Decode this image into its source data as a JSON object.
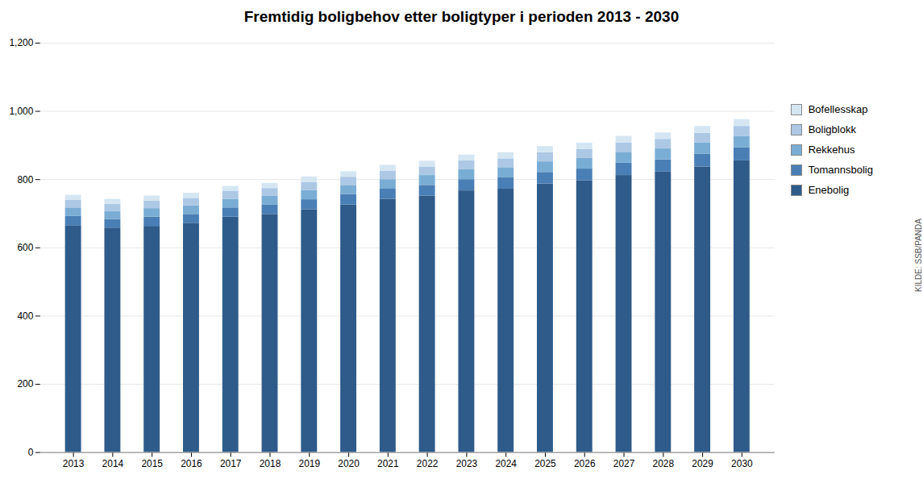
{
  "chart_data": {
    "type": "bar",
    "stacked": true,
    "title": "Fremtidig boligbehov etter boligtyper i perioden 2013 - 2030",
    "annotations": [
      "KILDE: SSB/PANDA"
    ],
    "categories": [
      "2013",
      "2014",
      "2015",
      "2016",
      "2017",
      "2018",
      "2019",
      "2020",
      "2021",
      "2022",
      "2023",
      "2024",
      "2025",
      "2026",
      "2027",
      "2028",
      "2029",
      "2030"
    ],
    "series": [
      {
        "name": "Enebolig",
        "color": "#2E5B8A",
        "values": [
          665,
          658,
          663,
          672,
          690,
          698,
          712,
          726,
          742,
          752,
          767,
          772,
          787,
          797,
          812,
          822,
          837,
          855
        ]
      },
      {
        "name": "Tomannsbolig",
        "color": "#4A7FB5",
        "values": [
          27,
          25,
          27,
          26,
          27,
          27,
          29,
          30,
          30,
          31,
          33,
          33,
          34,
          34,
          36,
          36,
          37,
          38
        ]
      },
      {
        "name": "Rekkehus",
        "color": "#7AADD4",
        "values": [
          25,
          24,
          25,
          25,
          25,
          26,
          27,
          27,
          28,
          29,
          29,
          30,
          31,
          31,
          32,
          32,
          33,
          34
        ]
      },
      {
        "name": "Boligblokk",
        "color": "#ACC8E5",
        "values": [
          22,
          21,
          22,
          22,
          23,
          23,
          24,
          24,
          25,
          25,
          26,
          26,
          27,
          27,
          28,
          28,
          29,
          29
        ]
      },
      {
        "name": "Bofellesskap",
        "color": "#D5E6F3",
        "values": [
          15,
          14,
          15,
          15,
          15,
          15,
          16,
          16,
          17,
          17,
          17,
          18,
          18,
          18,
          19,
          19,
          20,
          20
        ]
      }
    ],
    "ylim": [
      0,
      1200
    ],
    "yticks": [
      0,
      200,
      400,
      600,
      800,
      1000,
      1200
    ],
    "grid": true,
    "legend": "right"
  }
}
